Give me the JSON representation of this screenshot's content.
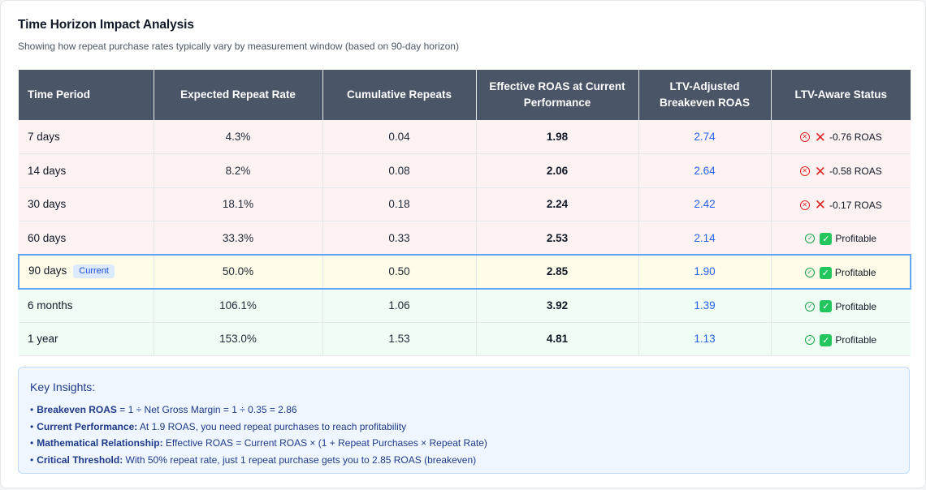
{
  "header": {
    "title": "Time Horizon Impact Analysis",
    "subtitle": "Showing how repeat purchase rates typically vary by measurement window (based on 90-day horizon)"
  },
  "table": {
    "columns": [
      "Time Period",
      "Expected Repeat Rate",
      "Cumulative Repeats",
      "Effective ROAS at Current Performance",
      "LTV-Adjusted Breakeven ROAS",
      "LTV-Aware Status"
    ],
    "rows": [
      {
        "period": "7 days",
        "badge": "",
        "repeat_rate": "4.3%",
        "cumulative": "0.04",
        "effective_roas": "1.98",
        "breakeven": "2.74",
        "status_icon": "x-circle-icon",
        "status": "-0.76 ROAS",
        "tone": "red"
      },
      {
        "period": "14 days",
        "badge": "",
        "repeat_rate": "8.2%",
        "cumulative": "0.08",
        "effective_roas": "2.06",
        "breakeven": "2.64",
        "status_icon": "x-circle-icon",
        "status": "-0.58 ROAS",
        "tone": "red"
      },
      {
        "period": "30 days",
        "badge": "",
        "repeat_rate": "18.1%",
        "cumulative": "0.18",
        "effective_roas": "2.24",
        "breakeven": "2.42",
        "status_icon": "x-circle-icon",
        "status": "-0.17 ROAS",
        "tone": "red"
      },
      {
        "period": "60 days",
        "badge": "",
        "repeat_rate": "33.3%",
        "cumulative": "0.33",
        "effective_roas": "2.53",
        "breakeven": "2.14",
        "status_icon": "check-circle-icon",
        "status": "Profitable",
        "tone": "red"
      },
      {
        "period": "90 days",
        "badge": "Current",
        "repeat_rate": "50.0%",
        "cumulative": "0.50",
        "effective_roas": "2.85",
        "breakeven": "1.90",
        "status_icon": "check-circle-icon",
        "status": "Profitable",
        "tone": "yellow"
      },
      {
        "period": "6 months",
        "badge": "",
        "repeat_rate": "106.1%",
        "cumulative": "1.06",
        "effective_roas": "3.92",
        "breakeven": "1.39",
        "status_icon": "check-circle-icon",
        "status": "Profitable",
        "tone": "green"
      },
      {
        "period": "1 year",
        "badge": "",
        "repeat_rate": "153.0%",
        "cumulative": "1.53",
        "effective_roas": "4.81",
        "breakeven": "1.13",
        "status_icon": "check-circle-icon",
        "status": "Profitable",
        "tone": "green"
      }
    ]
  },
  "insights": {
    "title": "Key Insights:",
    "items": [
      {
        "label": "Breakeven ROAS",
        "text": " = 1 ÷ Net Gross Margin = 1 ÷ 0.35 = 2.86"
      },
      {
        "label": "Current Performance:",
        "text": " At 1.9 ROAS, you need repeat purchases to reach profitability"
      },
      {
        "label": "Mathematical Relationship:",
        "text": " Effective ROAS = Current ROAS × (1 + Repeat Purchases × Repeat Rate)"
      },
      {
        "label": "Critical Threshold:",
        "text": " With 50% repeat rate, just 1 repeat purchase gets you to 2.85 ROAS (breakeven)"
      }
    ]
  },
  "colors": {
    "header_bg": "#4a5568",
    "row_red": "#fdf2f2",
    "row_yellow": "#fefce8",
    "row_green": "#f0fdf4",
    "accent_blue": "#2563eb",
    "current_border": "#60a5fa"
  }
}
